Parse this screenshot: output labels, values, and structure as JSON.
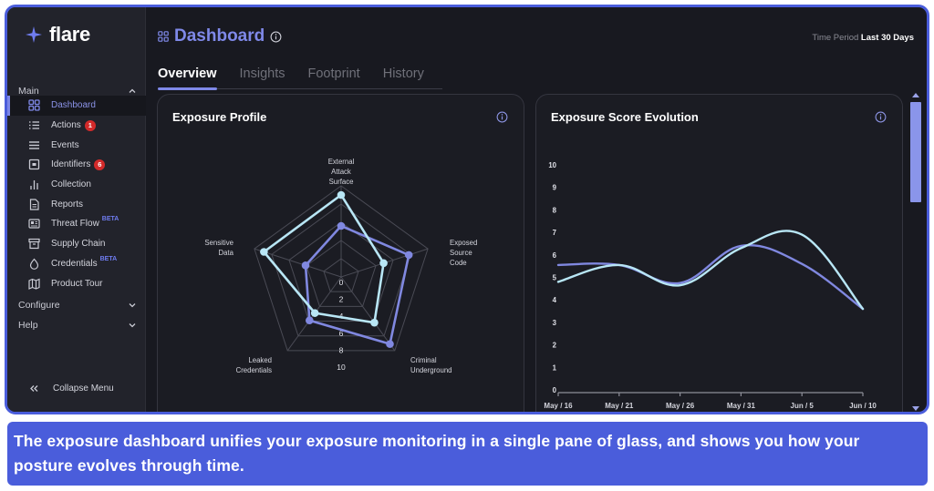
{
  "app": {
    "name": "flare",
    "brand_color": "#4a5ddb",
    "accent_color": "#7f89e8"
  },
  "sidebar": {
    "sections": {
      "main": {
        "label": "Main",
        "state": "expanded"
      },
      "configure": {
        "label": "Configure",
        "state": "collapsed"
      },
      "help": {
        "label": "Help",
        "state": "collapsed"
      }
    },
    "items": [
      {
        "label": "Dashboard",
        "icon": "grid-icon",
        "active": true
      },
      {
        "label": "Actions",
        "icon": "list-icon",
        "badge": "1"
      },
      {
        "label": "Events",
        "icon": "menu-icon"
      },
      {
        "label": "Identifiers",
        "icon": "id-card-icon",
        "badge": "6"
      },
      {
        "label": "Collection",
        "icon": "bar-chart-icon"
      },
      {
        "label": "Reports",
        "icon": "document-icon"
      },
      {
        "label": "Threat Flow",
        "icon": "newspaper-icon",
        "tag": "BETA"
      },
      {
        "label": "Supply Chain",
        "icon": "archive-box-icon"
      },
      {
        "label": "Credentials",
        "icon": "droplet-icon",
        "tag": "BETA"
      },
      {
        "label": "Product Tour",
        "icon": "map-icon"
      }
    ],
    "collapse_label": "Collapse Menu"
  },
  "header": {
    "title": "Dashboard",
    "time_period_label": "Time Period",
    "time_period_value": "Last 30 Days"
  },
  "tabs": [
    {
      "label": "Overview",
      "active": true
    },
    {
      "label": "Insights"
    },
    {
      "label": "Footprint"
    },
    {
      "label": "History"
    }
  ],
  "cards": {
    "exposure_profile": {
      "title": "Exposure Profile"
    },
    "score_evolution": {
      "title": "Exposure Score Evolution"
    }
  },
  "caption": "The exposure dashboard unifies your exposure monitoring in a single pane of glass, and shows you how your posture evolves through time.",
  "chart_data": [
    {
      "type": "radar",
      "title": "Exposure Profile",
      "axes": [
        "External Attack Surface",
        "Exposed Source Code",
        "Criminal Underground",
        "Leaked Credentials",
        "Sensitive Data"
      ],
      "scale_ticks": [
        0,
        2,
        4,
        6,
        8,
        10
      ],
      "range": [
        0,
        10
      ],
      "series": [
        {
          "name": "series-light",
          "color": "#b8e6f5",
          "values": [
            9.0,
            4.9,
            6.2,
            4.9,
            8.9
          ]
        },
        {
          "name": "series-purple",
          "color": "#8088e0",
          "values": [
            5.6,
            7.8,
            9.1,
            5.9,
            4.1
          ]
        }
      ]
    },
    {
      "type": "line",
      "title": "Exposure Score Evolution",
      "categories": [
        "May / 16",
        "May / 21",
        "May / 26",
        "May / 31",
        "Jun / 5",
        "Jun / 10"
      ],
      "yticks": [
        0,
        1,
        2,
        3,
        4,
        5,
        6,
        7,
        8,
        9,
        10
      ],
      "ylim": [
        0,
        10
      ],
      "series": [
        {
          "name": "series-light",
          "color": "#b8e6f5",
          "values": [
            4.8,
            5.55,
            4.65,
            6.3,
            6.9,
            3.6
          ]
        },
        {
          "name": "series-purple",
          "color": "#8088e0",
          "values": [
            5.55,
            5.55,
            4.75,
            6.4,
            5.6,
            3.6
          ]
        }
      ]
    }
  ]
}
